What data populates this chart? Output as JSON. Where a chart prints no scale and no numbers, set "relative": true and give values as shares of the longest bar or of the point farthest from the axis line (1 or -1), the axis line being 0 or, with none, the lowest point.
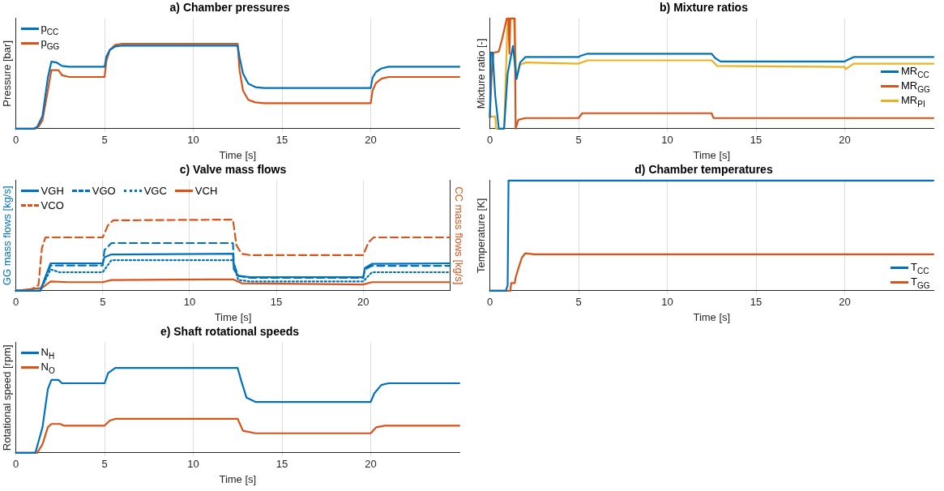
{
  "chart_data": [
    {
      "type": "line",
      "title": "a) Chamber pressures",
      "xlabel": "Time [s]",
      "ylabel": "Pressure [bar]",
      "relative": true,
      "xlim": [
        0,
        25
      ],
      "xticks": [
        0,
        5,
        10,
        15,
        20
      ],
      "grid": "x",
      "legend": "top left",
      "series": [
        {
          "name": "p$_{CC}$",
          "color": "#0072bd",
          "x": [
            0,
            1.0,
            1.2,
            1.5,
            1.8,
            2.0,
            2.3,
            2.6,
            3,
            5,
            5.1,
            5.3,
            5.6,
            6,
            12.5,
            12.6,
            12.8,
            13.1,
            13.5,
            14,
            20,
            20.1,
            20.3,
            20.6,
            21,
            25
          ],
          "values": [
            0,
            0,
            0.02,
            0.15,
            0.6,
            0.79,
            0.78,
            0.74,
            0.73,
            0.73,
            0.85,
            0.93,
            0.97,
            0.98,
            0.98,
            0.85,
            0.65,
            0.53,
            0.49,
            0.48,
            0.48,
            0.6,
            0.67,
            0.71,
            0.73,
            0.73
          ]
        },
        {
          "name": "p$_{GG}$",
          "color": "#d95319",
          "x": [
            0,
            1.1,
            1.3,
            1.5,
            1.8,
            2.0,
            2.4,
            2.6,
            3,
            5,
            5.1,
            5.3,
            5.6,
            6,
            12.5,
            12.6,
            12.8,
            13.1,
            13.5,
            14,
            20,
            20.1,
            20.3,
            20.6,
            21,
            25
          ],
          "values": [
            0,
            0,
            0.03,
            0.1,
            0.45,
            0.69,
            0.69,
            0.63,
            0.61,
            0.61,
            0.8,
            0.93,
            0.99,
            1,
            1,
            0.7,
            0.45,
            0.34,
            0.31,
            0.3,
            0.3,
            0.45,
            0.54,
            0.59,
            0.61,
            0.61
          ]
        }
      ]
    },
    {
      "type": "line",
      "title": "b) Mixture ratios",
      "xlabel": "Time [s]",
      "ylabel": "Mixture ratio [-]",
      "relative": true,
      "xlim": [
        0,
        25
      ],
      "xticks": [
        0,
        5,
        10,
        15,
        20
      ],
      "grid": "x",
      "legend": "right",
      "series": [
        {
          "name": "MR$_{CC}$",
          "color": "#0072bd",
          "x": [
            0,
            0.05,
            0.15,
            0.3,
            0.5,
            0.8,
            1.0,
            1.3,
            1.5,
            1.7,
            2.0,
            2.5,
            5,
            5.1,
            5.5,
            12.5,
            12.7,
            13,
            20,
            20.1,
            20.5,
            25
          ],
          "values": [
            0.1,
            0.69,
            0.69,
            0.3,
            0,
            0,
            0.5,
            0.75,
            0.45,
            0.6,
            0.65,
            0.65,
            0.65,
            0.66,
            0.68,
            0.68,
            0.64,
            0.61,
            0.61,
            0.62,
            0.65,
            0.65
          ]
        },
        {
          "name": "MR$_{GG}$",
          "color": "#d95319",
          "x": [
            0,
            0.1,
            0.2,
            0.5,
            0.7,
            0.95,
            1.05,
            1.1,
            1.15,
            1.25,
            1.4,
            1.45,
            1.6,
            2,
            5,
            5.2,
            12.5,
            12.6,
            20,
            25
          ],
          "values": [
            0.11,
            0.5,
            0.69,
            0.7,
            0.82,
            1,
            1,
            0.68,
            1,
            1,
            1,
            0,
            0.08,
            0.096,
            0.096,
            0.14,
            0.14,
            0.096,
            0.096,
            0.096
          ]
        },
        {
          "name": "MR$_{PI}$",
          "color": "#edb120",
          "x": [
            0,
            0.3,
            0.35,
            0.8,
            1.0,
            1.35,
            1.5,
            1.7,
            2,
            5,
            5.5,
            12.5,
            12.8,
            20,
            20.05,
            20.5,
            25
          ],
          "values": [
            0.11,
            0.11,
            0,
            0,
            1,
            1,
            0.45,
            0.58,
            0.6,
            0.59,
            0.62,
            0.62,
            0.57,
            0.56,
            0.54,
            0.59,
            0.59
          ]
        }
      ]
    },
    {
      "type": "line",
      "title": "c) Valve mass flows",
      "xlabel": "Time [s]",
      "ylabel": "GG mass flows [kg/s]",
      "y2label": "CC mass flows [kg/s]",
      "relative": true,
      "xlim": [
        0,
        25
      ],
      "xticks": [
        0,
        5,
        10,
        15,
        20
      ],
      "grid": "x",
      "legend": "top left",
      "series": [
        {
          "name": "VGH",
          "color": "#0072bd",
          "line_style": "solid",
          "x": [
            0,
            1.4,
            1.8,
            2.0,
            5,
            5.1,
            5.5,
            12.5,
            12.55,
            12.8,
            13.5,
            20,
            20.1,
            20.5,
            25
          ],
          "values": [
            0,
            0,
            0.26,
            0.385,
            0.385,
            0.47,
            0.51,
            0.52,
            0.3,
            0.21,
            0.19,
            0.19,
            0.32,
            0.377,
            0.385
          ]
        },
        {
          "name": "VGO",
          "color": "#0072bd",
          "line_style": "dashed",
          "x": [
            0,
            1.4,
            1.8,
            2.0,
            5,
            5.1,
            5.5,
            12.5,
            12.55,
            12.8,
            13.5,
            20,
            20.1,
            20.5,
            25
          ],
          "values": [
            0,
            0,
            0.24,
            0.355,
            0.355,
            0.57,
            0.67,
            0.67,
            0.38,
            0.21,
            0.18,
            0.18,
            0.3,
            0.35,
            0.35
          ]
        },
        {
          "name": "VGC",
          "color": "#0072bd",
          "line_style": "dotted",
          "x": [
            0,
            1.4,
            1.8,
            2.0,
            2.5,
            5,
            5.5,
            12.5,
            12.8,
            13.5,
            20,
            20.5,
            25
          ],
          "values": [
            0,
            0,
            0.2,
            0.3,
            0.26,
            0.26,
            0.43,
            0.43,
            0.15,
            0.13,
            0.13,
            0.26,
            0.26
          ]
        },
        {
          "name": "VCH",
          "color": "#d95319",
          "line_style": "solid",
          "axis": "y2",
          "x": [
            0,
            1.5,
            2.0,
            3,
            5,
            5.5,
            12.5,
            13,
            20,
            20.5,
            25
          ],
          "values": [
            0,
            0.04,
            0.13,
            0.12,
            0.12,
            0.15,
            0.16,
            0.105,
            0.087,
            0.12,
            0.12
          ]
        },
        {
          "name": "VCO",
          "color": "#d95319",
          "line_style": "dashed",
          "axis": "y2",
          "x": [
            0,
            0.9,
            1.3,
            1.5,
            1.7,
            5,
            5.3,
            5.6,
            12.5,
            12.7,
            13,
            13.5,
            20,
            20.3,
            20.6,
            25
          ],
          "values": [
            0,
            0.02,
            0.08,
            0.6,
            0.75,
            0.75,
            0.92,
            0.99,
            1,
            0.64,
            0.52,
            0.5,
            0.5,
            0.68,
            0.75,
            0.75
          ]
        }
      ]
    },
    {
      "type": "line",
      "title": "d) Chamber temperatures",
      "xlabel": "Time [s]",
      "ylabel": "Temperature [K]",
      "relative": true,
      "xlim": [
        0,
        25
      ],
      "xticks": [
        0,
        5,
        10,
        15,
        20
      ],
      "grid": "x",
      "legend": "bottom right",
      "series": [
        {
          "name": "T$_{CC}$",
          "color": "#0072bd",
          "x": [
            0,
            0.9,
            1.0,
            1.05,
            25
          ],
          "values": [
            0,
            0,
            0.05,
            1,
            1
          ]
        },
        {
          "name": "T$_{GG}$",
          "color": "#d95319",
          "x": [
            0,
            1.15,
            1.2,
            1.4,
            1.45,
            1.6,
            1.8,
            2.0,
            2.5,
            25
          ],
          "values": [
            0,
            0,
            0.07,
            0.07,
            0.12,
            0.2,
            0.3,
            0.34,
            0.33,
            0.33
          ]
        }
      ]
    },
    {
      "type": "line",
      "title": "e) Shaft rotational speeds",
      "xlabel": "Time [s]",
      "ylabel": "Rotational speed [rpm]",
      "relative": true,
      "xlim": [
        0,
        25
      ],
      "xticks": [
        0,
        5,
        10,
        15,
        20
      ],
      "grid": "x",
      "legend": "top left",
      "series": [
        {
          "name": "N$_{H}$",
          "color": "#0072bd",
          "x": [
            0,
            1.1,
            1.5,
            1.8,
            2.0,
            2.4,
            2.6,
            5,
            5.2,
            5.6,
            12.5,
            12.7,
            13,
            13.5,
            20,
            20.2,
            20.6,
            21,
            25
          ],
          "values": [
            0,
            0,
            0.3,
            0.75,
            0.86,
            0.86,
            0.82,
            0.82,
            0.94,
            1,
            1,
            0.85,
            0.65,
            0.6,
            0.6,
            0.7,
            0.8,
            0.82,
            0.82
          ]
        },
        {
          "name": "N$_{O}$",
          "color": "#d95319",
          "x": [
            0,
            1.2,
            1.5,
            1.8,
            2.0,
            2.5,
            2.7,
            5,
            5.3,
            5.6,
            12.5,
            12.8,
            13.5,
            20,
            20.3,
            20.8,
            25
          ],
          "values": [
            0,
            0,
            0.1,
            0.3,
            0.34,
            0.34,
            0.32,
            0.32,
            0.38,
            0.4,
            0.4,
            0.26,
            0.23,
            0.23,
            0.3,
            0.32,
            0.32
          ]
        }
      ]
    }
  ]
}
